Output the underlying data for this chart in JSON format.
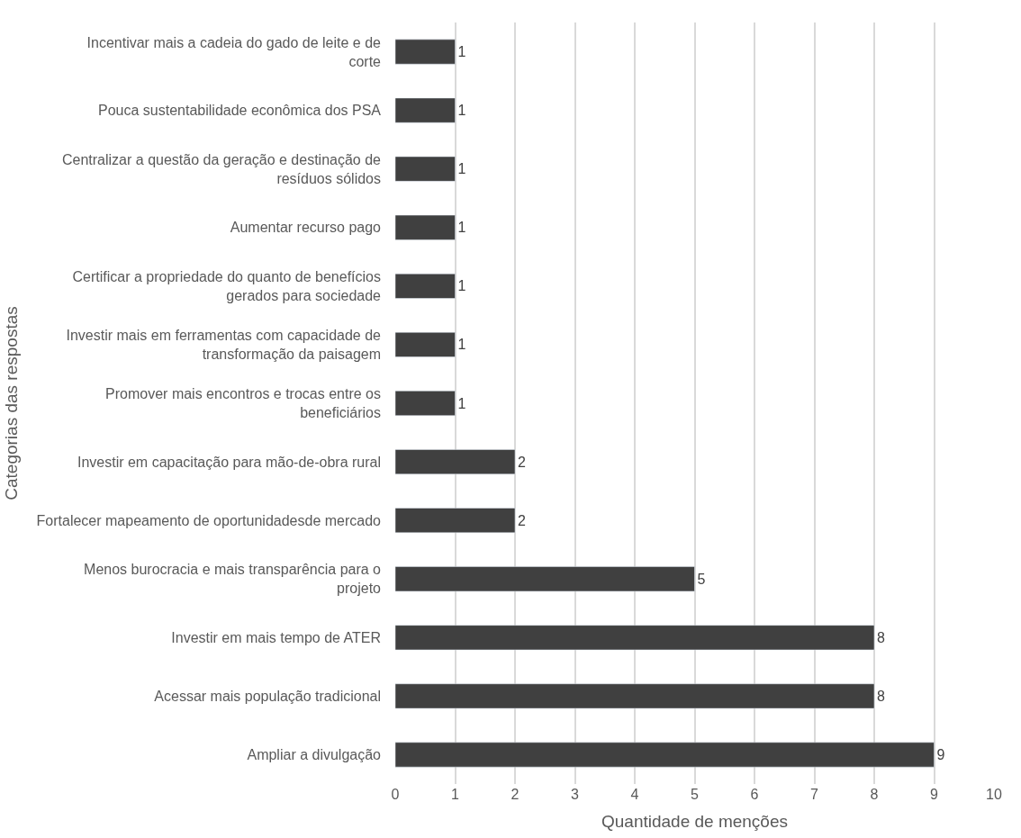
{
  "chart_data": {
    "type": "bar",
    "orientation": "horizontal",
    "xlabel": "Quantidade de menções",
    "ylabel": "Categorias das respostas",
    "categories": [
      "Incentivar mais a cadeia do gado de leite e de corte",
      "Pouca sustentabilidade econômica dos PSA",
      "Centralizar a questão da geração e destinação de resíduos sólidos",
      "Aumentar recurso pago",
      "Certificar a propriedade do quanto de benefícios gerados para sociedade",
      "Investir mais em ferramentas com capacidade de transformação da paisagem",
      "Promover mais encontros e trocas entre os beneficiários",
      "Investir em capacitação para mão-de-obra rural",
      "Fortalecer mapeamento de oportunidadesde mercado",
      "Menos burocracia e mais transparência para o projeto",
      "Investir em mais tempo de ATER",
      "Acessar mais população tradicional",
      "Ampliar a divulgação"
    ],
    "values": [
      1,
      1,
      1,
      1,
      1,
      1,
      1,
      2,
      2,
      5,
      8,
      8,
      9
    ],
    "color": "#404040",
    "xlim": [
      0,
      10
    ],
    "xticks": [
      0,
      1,
      2,
      3,
      4,
      5,
      6,
      7,
      8,
      9,
      10
    ],
    "grid": "x",
    "data_labels": true
  }
}
